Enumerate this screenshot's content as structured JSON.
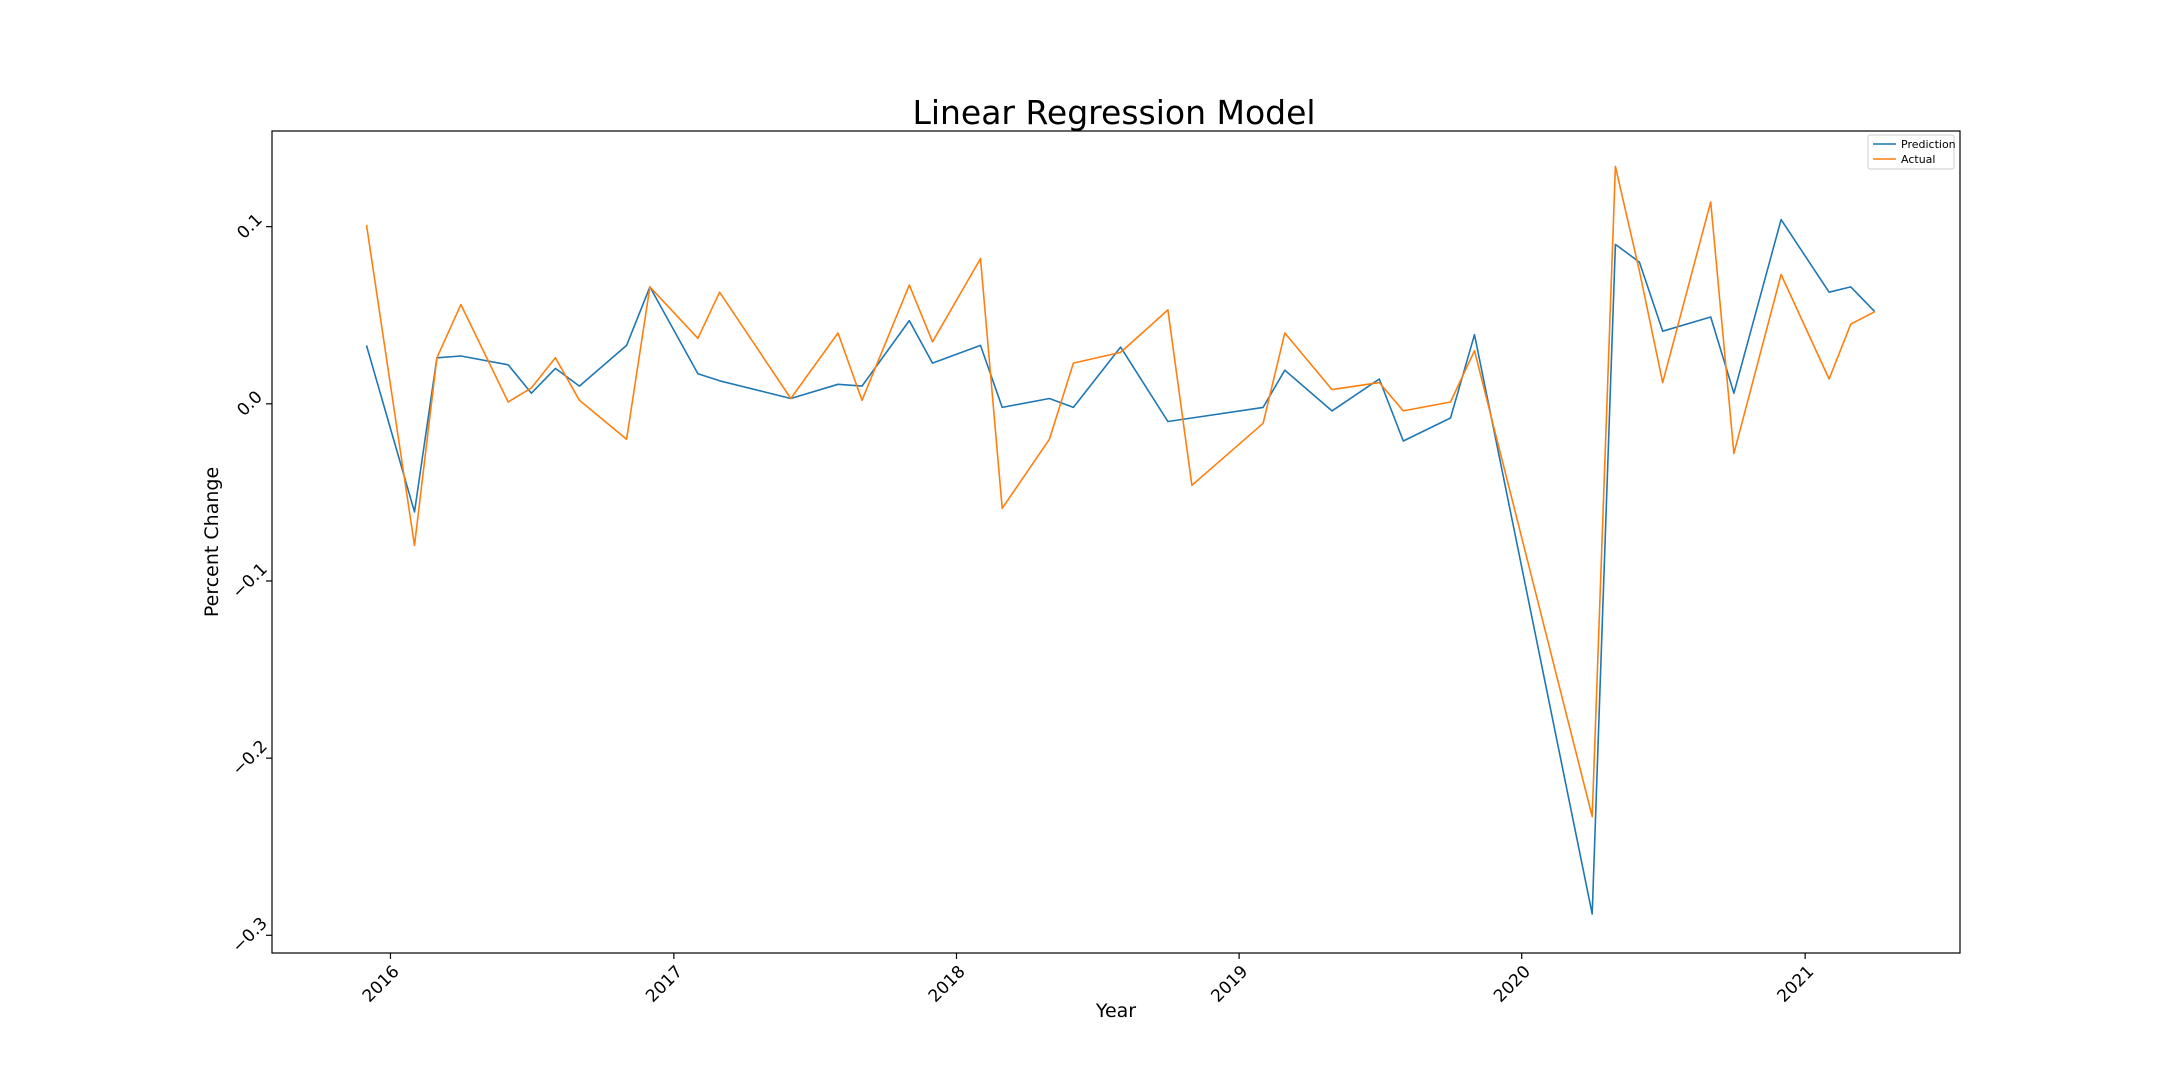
{
  "chart_data": {
    "type": "line",
    "title": "Linear Regression Model",
    "xlabel": "Year",
    "ylabel": "Percent Change",
    "xlim": [
      "2015-08-01",
      "2021-07-20"
    ],
    "ylim": [
      -0.31,
      0.154
    ],
    "grid": false,
    "legend_position": "top-right",
    "x_ticks": [
      {
        "date": "2016-01-01",
        "label": "2016"
      },
      {
        "date": "2017-01-01",
        "label": "2017"
      },
      {
        "date": "2018-01-01",
        "label": "2018"
      },
      {
        "date": "2019-01-01",
        "label": "2019"
      },
      {
        "date": "2020-01-01",
        "label": "2020"
      },
      {
        "date": "2021-01-01",
        "label": "2021"
      }
    ],
    "y_ticks": [
      {
        "value": 0.1,
        "label": "0.1"
      },
      {
        "value": 0.0,
        "label": "0.0"
      },
      {
        "value": -0.1,
        "label": "−0.1"
      },
      {
        "value": -0.2,
        "label": "−0.2"
      },
      {
        "value": -0.3,
        "label": "−0.3"
      }
    ],
    "x": [
      "2015-12-01",
      "2016-02-01",
      "2016-03-01",
      "2016-04-01",
      "2016-06-01",
      "2016-07-01",
      "2016-08-01",
      "2016-09-01",
      "2016-11-01",
      "2016-12-01",
      "2017-02-01",
      "2017-03-01",
      "2017-06-01",
      "2017-08-01",
      "2017-09-01",
      "2017-11-01",
      "2017-12-01",
      "2018-02-01",
      "2018-03-01",
      "2018-05-01",
      "2018-06-01",
      "2018-08-01",
      "2018-10-01",
      "2018-11-01",
      "2019-02-01",
      "2019-03-01",
      "2019-05-01",
      "2019-07-01",
      "2019-08-01",
      "2019-10-01",
      "2019-11-01",
      "2020-04-01",
      "2020-05-01",
      "2020-06-01",
      "2020-07-01",
      "2020-09-01",
      "2020-10-01",
      "2020-12-01",
      "2021-02-01",
      "2021-03-01",
      "2021-04-01"
    ],
    "series": [
      {
        "name": "Prediction",
        "color": "#1f77b4",
        "values": [
          0.033,
          -0.061,
          0.026,
          0.027,
          0.022,
          0.006,
          0.02,
          0.01,
          0.033,
          0.066,
          0.017,
          0.013,
          0.003,
          0.011,
          0.01,
          0.047,
          0.023,
          0.033,
          -0.002,
          0.003,
          -0.002,
          0.032,
          -0.01,
          -0.008,
          -0.002,
          0.019,
          -0.004,
          0.014,
          -0.021,
          -0.008,
          0.039,
          -0.288,
          0.09,
          0.08,
          0.041,
          0.049,
          0.006,
          0.104,
          0.063,
          0.066,
          0.052
        ]
      },
      {
        "name": "Actual",
        "color": "#ff7f0e",
        "values": [
          0.101,
          -0.08,
          0.026,
          0.056,
          0.001,
          0.009,
          0.026,
          0.002,
          -0.02,
          0.066,
          0.037,
          0.063,
          0.003,
          0.04,
          0.002,
          0.067,
          0.035,
          0.082,
          -0.059,
          -0.02,
          0.023,
          0.029,
          0.053,
          -0.046,
          -0.011,
          0.04,
          0.008,
          0.012,
          -0.004,
          0.001,
          0.03,
          -0.233,
          0.134,
          0.075,
          0.012,
          0.114,
          -0.028,
          0.073,
          0.014,
          0.045,
          0.052
        ]
      }
    ]
  }
}
